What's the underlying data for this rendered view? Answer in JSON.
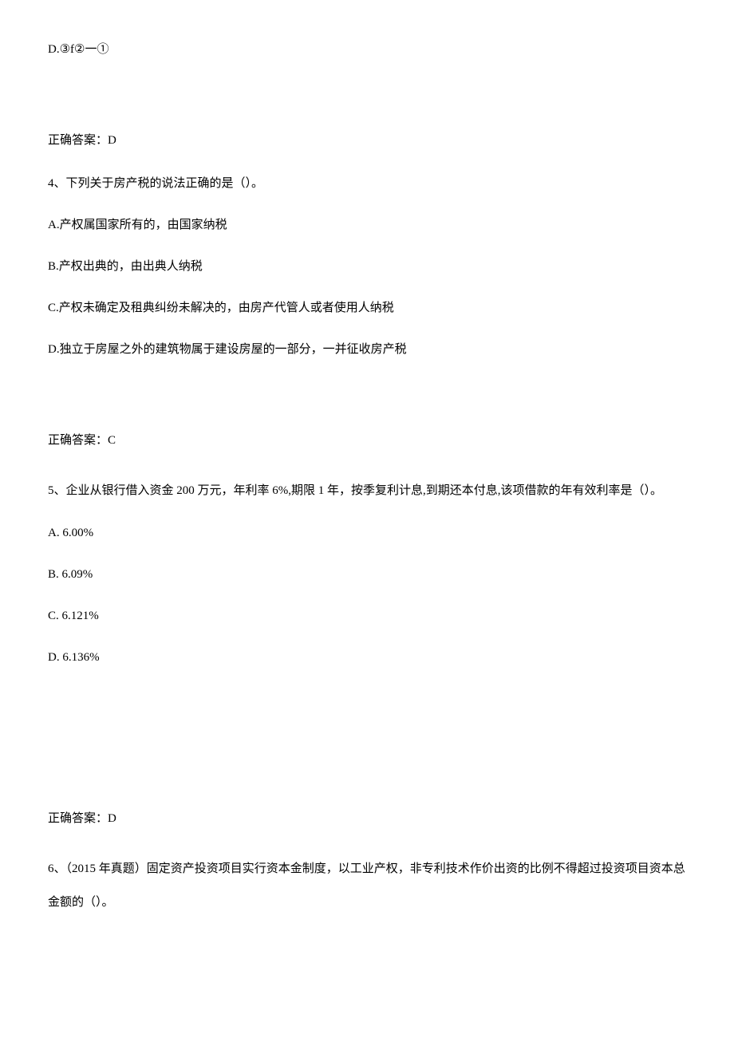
{
  "colors": {
    "text": "#000000",
    "background": "#ffffff"
  },
  "typography": {
    "font_family": "SimSun",
    "font_size_pt": 11,
    "line_height": 1.6
  },
  "q3": {
    "option_d": "D.③f②一①",
    "answer_label": "正确答案：D"
  },
  "q4": {
    "intro": "4、下列关于房产税的说法正确的是（）。",
    "option_a": "A.产权属国家所有的，由国家纳税",
    "option_b": "B.产权出典的，由出典人纳税",
    "option_c": "C.产权未确定及租典纠纷未解决的，由房产代管人或者使用人纳税",
    "option_d": "D.独立于房屋之外的建筑物属于建设房屋的一部分，一并征收房产税",
    "answer_label": "正确答案：C"
  },
  "q5": {
    "intro": "5、企业从银行借入资金 200 万元，年利率 6%,期限 1 年，按季复利计息,到期还本付息,该项借款的年有效利率是（）。",
    "option_a": "A.  6.00%",
    "option_b": "B.  6.09%",
    "option_c": "C.  6.121%",
    "option_d": "D.  6.136%",
    "answer_label": "正确答案：D"
  },
  "q6": {
    "intro": "6、（2015 年真题）固定资产投资项目实行资本金制度，以工业产权，非专利技术作价出资的比例不得超过投资项目资本总金额的（）。"
  }
}
